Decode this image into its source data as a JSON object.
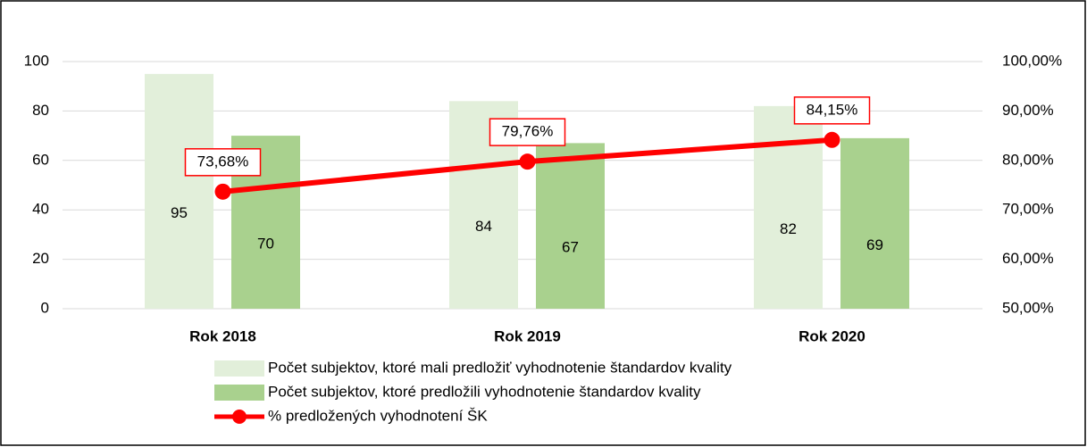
{
  "chart_data": {
    "type": "bar",
    "categories": [
      "Rok 2018",
      "Rok 2019",
      "Rok 2020"
    ],
    "series": [
      {
        "name": "Počet subjektov, ktoré mali predložiť vyhodnotenie štandardov kvality",
        "color": "#e2efda",
        "values": [
          95,
          84,
          82
        ]
      },
      {
        "name": "Počet subjektov, ktoré predložili vyhodnotenie štandardov kvality",
        "color": "#a9d18e",
        "values": [
          70,
          67,
          69
        ]
      },
      {
        "name": "% predložených vyhodnotení ŠK",
        "type": "line",
        "axis": "y2",
        "color": "#ff0000",
        "values": [
          73.68,
          79.76,
          84.15
        ],
        "value_labels": [
          "73,68%",
          "79,76%",
          "84,15%"
        ]
      }
    ],
    "ylim": [
      0,
      100
    ],
    "yticks": [
      0,
      20,
      40,
      60,
      80,
      100
    ],
    "y2lim": [
      50,
      100
    ],
    "y2ticks": [
      {
        "value": 50,
        "label": "50,00%"
      },
      {
        "value": 60,
        "label": "60,00%"
      },
      {
        "value": 70,
        "label": "70,00%"
      },
      {
        "value": 80,
        "label": "80,00%"
      },
      {
        "value": 90,
        "label": "90,00%"
      },
      {
        "value": 100,
        "label": "100,00%"
      }
    ],
    "grid": true,
    "legend": "bottom"
  }
}
